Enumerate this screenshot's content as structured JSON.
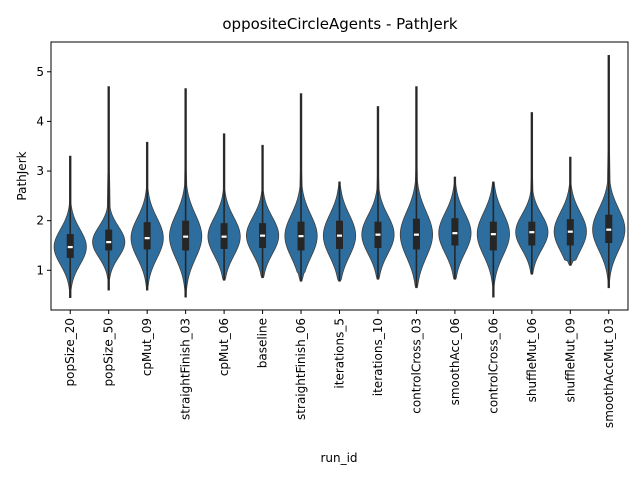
{
  "chart_data": {
    "type": "violin",
    "title": "oppositeCircleAgents - PathJerk",
    "xlabel": "run_id",
    "ylabel": "PathJerk",
    "ylim": [
      0.2,
      5.6
    ],
    "yticks": [
      1,
      2,
      3,
      4,
      5
    ],
    "grid": false,
    "legend": "none",
    "color": "#2e6e9e",
    "box_color": "#262626",
    "median_color": "#ffffff",
    "categories": [
      "popSize_20",
      "popSize_50",
      "cpMut_09",
      "straightFinish_03",
      "cpMut_06",
      "baseline",
      "straightFinish_06",
      "iterations_5",
      "iterations_10",
      "controlCross_03",
      "smoothAcc_06",
      "controlCross_06",
      "shuffleMut_06",
      "shuffleMut_09",
      "smoothAccMut_03"
    ],
    "series": [
      {
        "category": "popSize_20",
        "min": 0.45,
        "q1": 1.25,
        "median": 1.47,
        "q3": 1.73,
        "max": 3.3
      },
      {
        "category": "popSize_50",
        "min": 0.6,
        "q1": 1.4,
        "median": 1.57,
        "q3": 1.82,
        "max": 4.7
      },
      {
        "category": "cpMut_09",
        "min": 0.6,
        "q1": 1.42,
        "median": 1.65,
        "q3": 1.97,
        "max": 3.58
      },
      {
        "category": "straightFinish_03",
        "min": 0.46,
        "q1": 1.4,
        "median": 1.68,
        "q3": 2.0,
        "max": 4.66
      },
      {
        "category": "cpMut_06",
        "min": 0.8,
        "q1": 1.43,
        "median": 1.68,
        "q3": 1.95,
        "max": 3.75
      },
      {
        "category": "baseline",
        "min": 0.85,
        "q1": 1.45,
        "median": 1.7,
        "q3": 1.95,
        "max": 3.52
      },
      {
        "category": "straightFinish_06",
        "min": 0.78,
        "q1": 1.4,
        "median": 1.69,
        "q3": 1.98,
        "max": 4.56
      },
      {
        "category": "iterations_5",
        "min": 0.78,
        "q1": 1.43,
        "median": 1.7,
        "q3": 2.0,
        "max": 2.78
      },
      {
        "category": "iterations_10",
        "min": 0.82,
        "q1": 1.45,
        "median": 1.72,
        "q3": 1.98,
        "max": 4.3
      },
      {
        "category": "controlCross_03",
        "min": 0.65,
        "q1": 1.42,
        "median": 1.72,
        "q3": 2.04,
        "max": 4.7
      },
      {
        "category": "smoothAcc_06",
        "min": 0.82,
        "q1": 1.5,
        "median": 1.75,
        "q3": 2.05,
        "max": 2.88
      },
      {
        "category": "controlCross_06",
        "min": 0.46,
        "q1": 1.4,
        "median": 1.73,
        "q3": 1.98,
        "max": 2.78
      },
      {
        "category": "shuffleMut_06",
        "min": 0.92,
        "q1": 1.5,
        "median": 1.77,
        "q3": 1.98,
        "max": 4.18
      },
      {
        "category": "shuffleMut_09",
        "min": 1.1,
        "q1": 1.5,
        "median": 1.78,
        "q3": 2.03,
        "max": 3.28
      },
      {
        "category": "smoothAccMut_03",
        "min": 0.65,
        "q1": 1.55,
        "median": 1.82,
        "q3": 2.12,
        "max": 5.33
      }
    ]
  }
}
